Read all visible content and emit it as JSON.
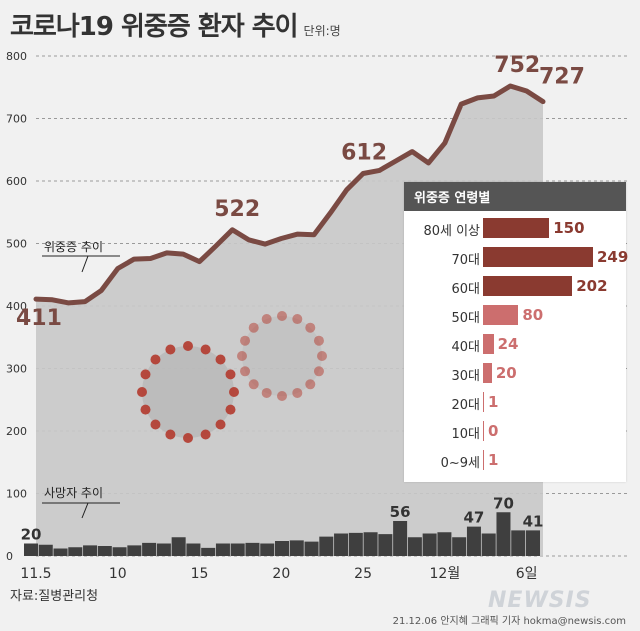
{
  "header": {
    "title": "코로나19 위중증 환자 추이",
    "unit": "단위:명"
  },
  "footer": {
    "source": "자료:질병관리청",
    "credit": "21.12.06 안지혜 그래픽 기자 hokma@newsis.com",
    "watermark": "NEWSIS"
  },
  "colors": {
    "line": "#7a4a43",
    "area": "#c8c8c8",
    "bars": "#3f3f3f",
    "inset_dark": "#8a3a30",
    "inset_light": "#cc6e6e",
    "value_text": "#7a3a32"
  },
  "chart_data": [
    {
      "type": "line",
      "series": [
        {
          "name": "위중증 추이",
          "values": [
            411,
            410,
            405,
            407,
            425,
            460,
            475,
            476,
            485,
            483,
            471,
            496,
            522,
            506,
            499,
            508,
            515,
            514,
            549,
            586,
            612,
            617,
            632,
            647,
            629,
            661,
            723,
            733,
            736,
            752,
            744,
            727
          ]
        }
      ],
      "x_ticks": [
        "11.5",
        "10",
        "15",
        "20",
        "25",
        "12월",
        "6일"
      ],
      "x_tick_index": [
        0,
        5,
        10,
        15,
        20,
        25,
        30
      ],
      "ylim": [
        0,
        800
      ],
      "y_ticks": [
        0,
        100,
        200,
        300,
        400,
        500,
        600,
        700,
        800
      ],
      "value_labels": [
        {
          "index": 0,
          "text": "411"
        },
        {
          "index": 12,
          "text": "522"
        },
        {
          "index": 20,
          "text": "612"
        },
        {
          "index": 29,
          "text": "752"
        },
        {
          "index": 31,
          "text": "727"
        }
      ],
      "grid": true
    },
    {
      "type": "bar",
      "series": [
        {
          "name": "사망자 추이",
          "values": [
            20,
            18,
            12,
            14,
            17,
            16,
            14,
            17,
            21,
            20,
            30,
            20,
            13,
            20,
            20,
            21,
            20,
            24,
            25,
            23,
            31,
            36,
            37,
            38,
            35,
            56,
            30,
            36,
            38,
            30,
            47,
            36,
            70,
            41,
            41
          ]
        }
      ],
      "value_labels": [
        {
          "index": 0,
          "text": "20"
        },
        {
          "index": 25,
          "text": "56"
        },
        {
          "index": 30,
          "text": "47"
        },
        {
          "index": 32,
          "text": "70"
        },
        {
          "index": 34,
          "text": "41"
        }
      ]
    },
    {
      "type": "bar",
      "title": "위중증 연령별",
      "categories": [
        "80세 이상",
        "70대",
        "60대",
        "50대",
        "40대",
        "30대",
        "20대",
        "10대",
        "0~9세"
      ],
      "values": [
        150,
        249,
        202,
        80,
        24,
        20,
        1,
        0,
        1
      ]
    }
  ]
}
